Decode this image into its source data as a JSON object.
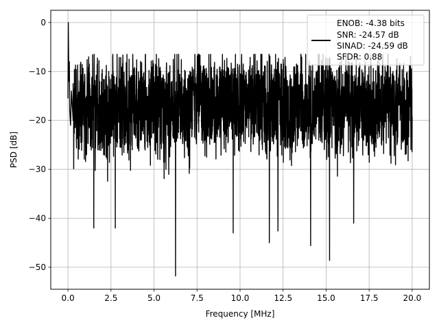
{
  "chart_data": {
    "type": "line",
    "xlabel": "Frequency [MHz]",
    "ylabel": "PSD [dB]",
    "xlim": [
      -1.0,
      21.0
    ],
    "ylim": [
      -54.5,
      2.5
    ],
    "xticks": [
      0.0,
      2.5,
      5.0,
      7.5,
      10.0,
      12.5,
      15.0,
      17.5,
      20.0
    ],
    "xtick_labels": [
      "0.0",
      "2.5",
      "5.0",
      "7.5",
      "10.0",
      "12.5",
      "15.0",
      "17.5",
      "20.0"
    ],
    "yticks": [
      0,
      -10,
      -20,
      -30,
      -40,
      -50
    ],
    "ytick_labels": [
      "0",
      "−10",
      "−20",
      "−30",
      "−40",
      "−50"
    ],
    "grid": true,
    "legend_position": "top-right",
    "series_color": "#000000",
    "legend_lines": [
      "ENOB: -4.38 bits",
      "SNR: -24.57 dB",
      "SINAD: -24.59 dB",
      "SFDR: 0.88"
    ],
    "series": [
      {
        "x": [
          0.0,
          0.02,
          0.05,
          0.08,
          0.1,
          0.15,
          0.2,
          0.3,
          0.5,
          1.0,
          1.5,
          2.0,
          2.5,
          3.0,
          3.5,
          4.0,
          4.5,
          5.0,
          5.5,
          6.0,
          6.5,
          7.0,
          7.5,
          8.0,
          8.5,
          9.0,
          9.5,
          10.0,
          10.5,
          11.0,
          11.5,
          12.0,
          12.5,
          13.0,
          13.5,
          14.0,
          14.5,
          15.0,
          15.5,
          16.0,
          16.5,
          17.0,
          17.5,
          18.0,
          18.5,
          19.0,
          19.5,
          20.0
        ],
        "y": [
          -15.5,
          0.0,
          -12.0,
          -8.0,
          -18.0,
          -21.0,
          -14.0,
          -20.0,
          -16.0,
          -18.0,
          -17.5,
          -19.0,
          -18.0,
          -17.0,
          -18.5,
          -16.0,
          -17.0,
          -16.5,
          -18.0,
          -17.0,
          -16.0,
          -17.5,
          -15.0,
          -17.0,
          -16.0,
          -17.5,
          -15.5,
          -16.5,
          -17.0,
          -16.0,
          -18.0,
          -17.0,
          -16.5,
          -17.5,
          -16.0,
          -18.0,
          -17.0,
          -16.5,
          -17.0,
          -18.0,
          -16.0,
          -17.5,
          -17.0,
          -18.0,
          -16.5,
          -17.0,
          -18.0,
          -17.0
        ]
      }
    ],
    "notable_dips": [
      {
        "x": 1.5,
        "y": -42.0
      },
      {
        "x": 2.75,
        "y": -42.0
      },
      {
        "x": 6.25,
        "y": -51.8
      },
      {
        "x": 9.6,
        "y": -43.0
      },
      {
        "x": 11.7,
        "y": -45.0
      },
      {
        "x": 14.1,
        "y": -45.6
      },
      {
        "x": 15.2,
        "y": -48.6
      },
      {
        "x": 16.6,
        "y": -41.0
      },
      {
        "x": 12.2,
        "y": -42.6
      }
    ]
  }
}
